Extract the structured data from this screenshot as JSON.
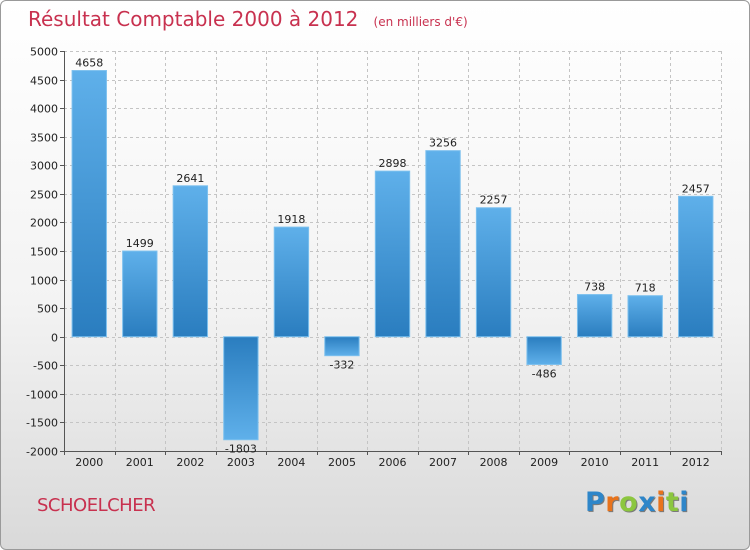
{
  "chart_data": {
    "type": "bar",
    "title": "Résultat Comptable 2000 à 2012",
    "subtitle": "(en milliers d'€)",
    "categories": [
      "2000",
      "2001",
      "2002",
      "2003",
      "2004",
      "2005",
      "2006",
      "2007",
      "2008",
      "2009",
      "2010",
      "2011",
      "2012"
    ],
    "values": [
      4658,
      1499,
      2641,
      -1803,
      1918,
      -332,
      2898,
      3256,
      2257,
      -486,
      738,
      718,
      2457
    ],
    "ylim": [
      -2000,
      5000
    ],
    "yticks": [
      5000,
      4500,
      4000,
      3500,
      3000,
      2500,
      2000,
      1500,
      1000,
      500,
      0,
      -500,
      -1000,
      -1500,
      -2000
    ],
    "grid": true,
    "bar_color_light": "#5fb0ea",
    "bar_color_dark": "#2a7dbf"
  },
  "footer": {
    "city": "SCHOELCHER",
    "logo_letters": [
      "P",
      "r",
      "o",
      "x",
      "i",
      "t",
      "i"
    ],
    "logo_colors": [
      "#2e86c9",
      "#e8731c",
      "#8cc63f",
      "#2e86c9",
      "#e8731c",
      "#8cc63f",
      "#2e86c9"
    ]
  }
}
